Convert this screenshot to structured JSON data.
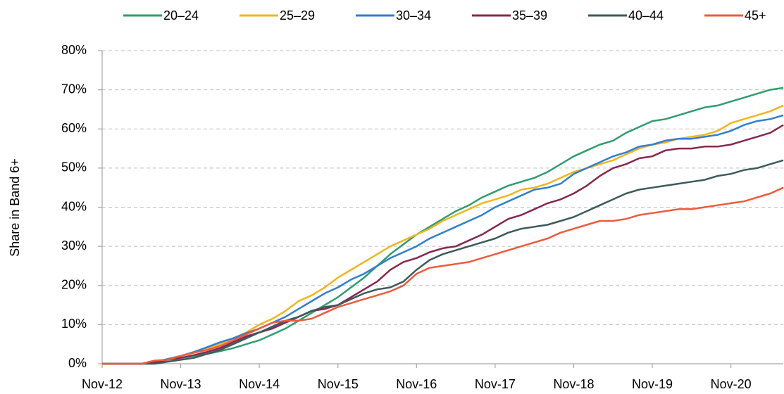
{
  "chart_data": {
    "type": "line",
    "y_label": "Share in Band 6+",
    "categories": [
      "Nov-12",
      null,
      null,
      null,
      null,
      null,
      "Nov-13",
      null,
      null,
      null,
      null,
      null,
      "Nov-14",
      null,
      null,
      null,
      null,
      null,
      "Nov-15",
      null,
      null,
      null,
      null,
      null,
      "Nov-16",
      null,
      null,
      null,
      null,
      null,
      "Nov-17",
      null,
      null,
      null,
      null,
      null,
      "Nov-18",
      null,
      null,
      null,
      null,
      null,
      "Nov-19",
      null,
      null,
      null,
      null,
      null,
      "Nov-20",
      null,
      null,
      null,
      null
    ],
    "series": [
      {
        "name": "20–24",
        "color": "#2e9e6e",
        "values": [
          0,
          0,
          0,
          0,
          0.3,
          1,
          1.5,
          2,
          2.5,
          3.2,
          4,
          5,
          6,
          7.5,
          9,
          11,
          13,
          15,
          17,
          19.5,
          22,
          25,
          28,
          30.5,
          33,
          35,
          37,
          39,
          40.5,
          42.5,
          44,
          45.5,
          46.5,
          47.5,
          49,
          51,
          53,
          54.5,
          56,
          57,
          59,
          60.5,
          62,
          62.5,
          63.5,
          64.5,
          65.5,
          66,
          67,
          68,
          69,
          70,
          70.5
        ]
      },
      {
        "name": "25–29",
        "color": "#f2b51c",
        "values": [
          0,
          0,
          0,
          0,
          0.5,
          1.2,
          2,
          2.8,
          3.8,
          5,
          6.5,
          8,
          10,
          11.5,
          13.5,
          16,
          17.5,
          19.5,
          22,
          24,
          26,
          28,
          30,
          31.5,
          33,
          34.5,
          36.5,
          38,
          39.5,
          41,
          42,
          43,
          44.5,
          45,
          46,
          47.5,
          49,
          50,
          51,
          52,
          53.5,
          55,
          56,
          56.5,
          57.5,
          58,
          58.5,
          59.5,
          61.5,
          62.5,
          63.5,
          64.5,
          66
        ]
      },
      {
        "name": "30–34",
        "color": "#2f7fd0",
        "values": [
          0,
          0,
          0,
          0,
          0.5,
          1.2,
          2,
          3,
          4.2,
          5.5,
          6.5,
          7.8,
          9,
          10.5,
          12,
          14,
          16,
          18,
          19.5,
          21.5,
          23,
          25,
          27,
          28.5,
          30,
          32,
          33.5,
          35,
          36.5,
          38,
          40,
          41.5,
          43,
          44.5,
          45,
          46,
          48.5,
          50,
          51.5,
          53,
          54,
          55.5,
          56,
          57,
          57.5,
          57.5,
          58,
          58.5,
          59.5,
          61,
          62,
          62.5,
          63.5
        ]
      },
      {
        "name": "35–39",
        "color": "#84284f",
        "values": [
          0,
          0,
          0,
          0,
          0.3,
          1,
          1.5,
          2.2,
          3,
          4,
          5.5,
          7,
          8,
          9,
          10.5,
          12,
          13.5,
          14,
          15,
          17,
          19,
          21,
          24,
          26,
          27,
          28.5,
          29.5,
          30,
          31.5,
          33,
          35,
          37,
          38,
          39.5,
          41,
          42,
          43.5,
          45.5,
          48,
          50,
          51,
          52.5,
          53,
          54.5,
          55,
          55,
          55.5,
          55.5,
          56,
          57,
          58,
          59,
          61
        ]
      },
      {
        "name": "40–44",
        "color": "#3d5a5a",
        "values": [
          0,
          0,
          0,
          0,
          0,
          0.5,
          1,
          1.5,
          2.5,
          3.5,
          5,
          6.5,
          8,
          9.5,
          11,
          12,
          13.5,
          14.5,
          15,
          16.5,
          18,
          19,
          19.5,
          21,
          24,
          26.5,
          28,
          29,
          30,
          31,
          32,
          33.5,
          34.5,
          35,
          35.5,
          36.5,
          37.5,
          39,
          40.5,
          42,
          43.5,
          44.5,
          45,
          45.5,
          46,
          46.5,
          47,
          48,
          48.5,
          49.5,
          50,
          51,
          52
        ]
      },
      {
        "name": "45+",
        "color": "#ee5a3c",
        "values": [
          0,
          0,
          0,
          0,
          0.8,
          1,
          2,
          2.8,
          3.5,
          4.5,
          6,
          7.5,
          9,
          10.5,
          11,
          11,
          11.5,
          13,
          14.5,
          15.5,
          16.5,
          17.5,
          18.5,
          20,
          23,
          24.5,
          25,
          25.5,
          26,
          27,
          28,
          29,
          30,
          31,
          32,
          33.5,
          34.5,
          35.5,
          36.5,
          36.5,
          37,
          38,
          38.5,
          39,
          39.5,
          39.5,
          40,
          40.5,
          41,
          41.5,
          42.5,
          43.5,
          45
        ]
      }
    ],
    "ylim": [
      0,
      80
    ],
    "yticks": [
      {
        "value": 0,
        "label": "0%"
      },
      {
        "value": 10,
        "label": "10%"
      },
      {
        "value": 20,
        "label": "20%"
      },
      {
        "value": 30,
        "label": "30%"
      },
      {
        "value": 40,
        "label": "40%"
      },
      {
        "value": 50,
        "label": "50%"
      },
      {
        "value": 60,
        "label": "60%"
      },
      {
        "value": 70,
        "label": "70%"
      },
      {
        "value": 80,
        "label": "80%"
      }
    ],
    "grid": true
  }
}
